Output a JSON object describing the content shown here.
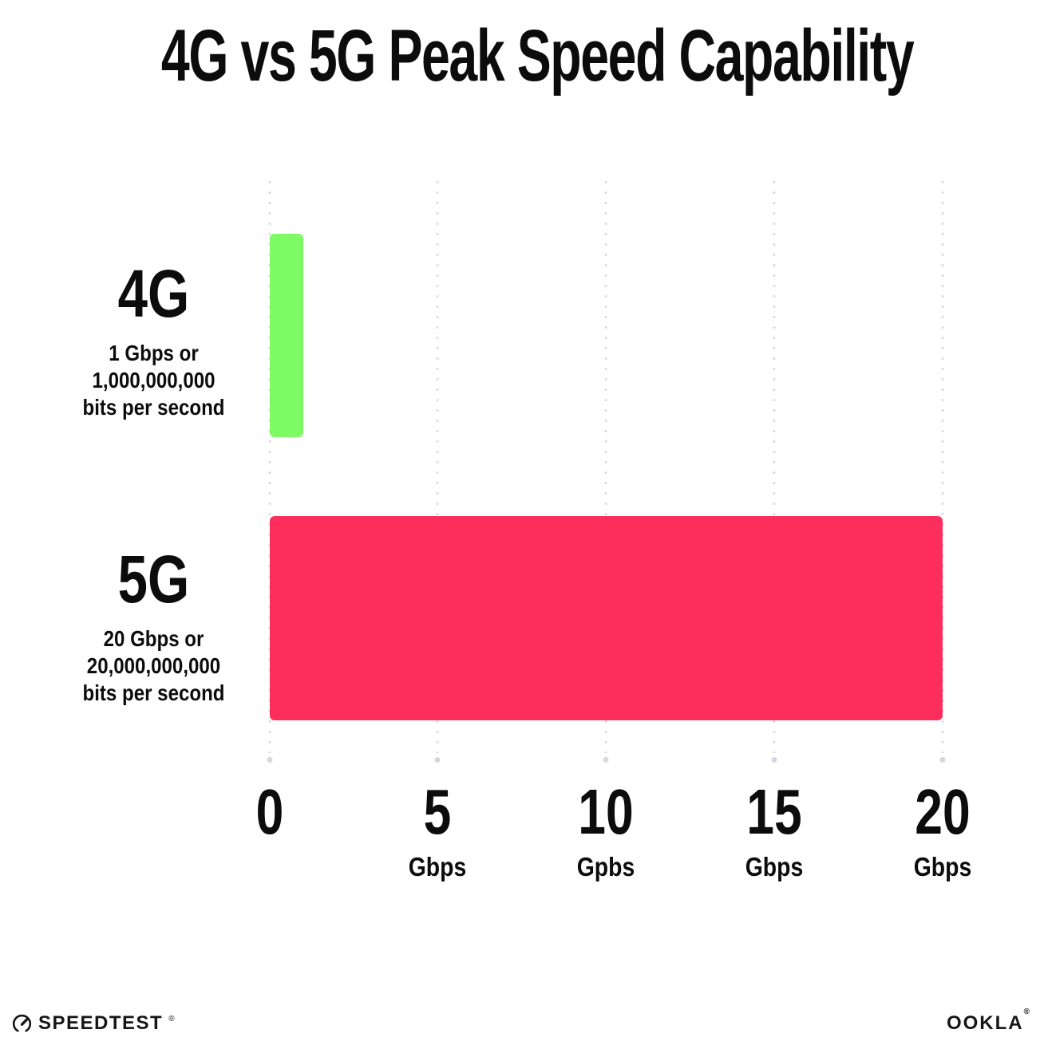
{
  "title": "4G vs 5G Peak Speed Capability",
  "rows": [
    {
      "name": "4G",
      "sub": [
        "1 Gbps or",
        "1,000,000,000",
        "bits per second"
      ],
      "value_gbps": 1,
      "color": "#7DFA64"
    },
    {
      "name": "5G",
      "sub": [
        "20 Gbps or",
        "20,000,000,000",
        "bits per second"
      ],
      "value_gbps": 20,
      "color": "#FD2E5B"
    }
  ],
  "axis": {
    "max_gbps": 20,
    "ticks": [
      {
        "value": "0",
        "unit": ""
      },
      {
        "value": "5",
        "unit": "Gbps"
      },
      {
        "value": "10",
        "unit": "Gpbs"
      },
      {
        "value": "15",
        "unit": "Gbps"
      },
      {
        "value": "20",
        "unit": "Gbps"
      }
    ]
  },
  "footer": {
    "speedtest": "SPEEDTEST",
    "speedtest_mark": "®",
    "ookla": "OOKLA",
    "ookla_mark": "®"
  },
  "colors": {
    "bar_4g": "#7DFA64",
    "bar_5g": "#FD2E5B",
    "grid_dot": "#d9d9e5",
    "text": "#0c0c0c",
    "background": "#ffffff"
  },
  "chart_data": {
    "type": "bar",
    "orientation": "horizontal",
    "title": "4G vs 5G Peak Speed Capability",
    "categories": [
      "4G",
      "5G"
    ],
    "values": [
      1,
      20
    ],
    "unit": "Gbps",
    "xlabel": "",
    "ylabel": "",
    "xlim": [
      0,
      20
    ],
    "xticks": [
      0,
      5,
      10,
      15,
      20
    ],
    "xtick_labels": [
      "0",
      "5 Gbps",
      "10 Gpbs",
      "15 Gbps",
      "20 Gbps"
    ],
    "grid": "vertical-dotted",
    "legend": "none",
    "bar_colors": [
      "#7DFA64",
      "#FD2E5B"
    ],
    "annotations": [
      "4G: 1 Gbps or 1,000,000,000 bits per second",
      "5G: 20 Gbps or 20,000,000,000 bits per second"
    ]
  }
}
